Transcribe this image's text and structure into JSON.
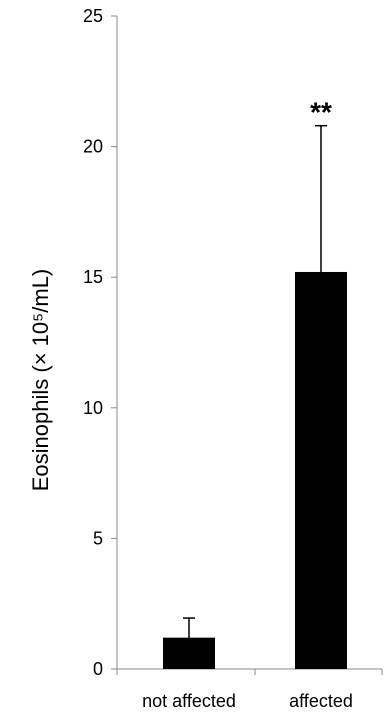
{
  "chart_data": {
    "type": "bar",
    "title": "",
    "xlabel": "",
    "ylabel": "Eosinophils (× 10⁵/mL)",
    "ylim": [
      0,
      25
    ],
    "yticks": [
      "0",
      "5",
      "10",
      "15",
      "20",
      "25"
    ],
    "categories": [
      "not affected",
      "affected"
    ],
    "values": [
      1.2,
      15.2
    ],
    "error_upper": [
      0.75,
      5.6
    ],
    "annotations": [
      {
        "category": "affected",
        "text": "**"
      }
    ],
    "grid": false,
    "legend": "none",
    "colors": {
      "bar": "#000000",
      "axis": "#888888",
      "errorbar": "#000000"
    }
  }
}
